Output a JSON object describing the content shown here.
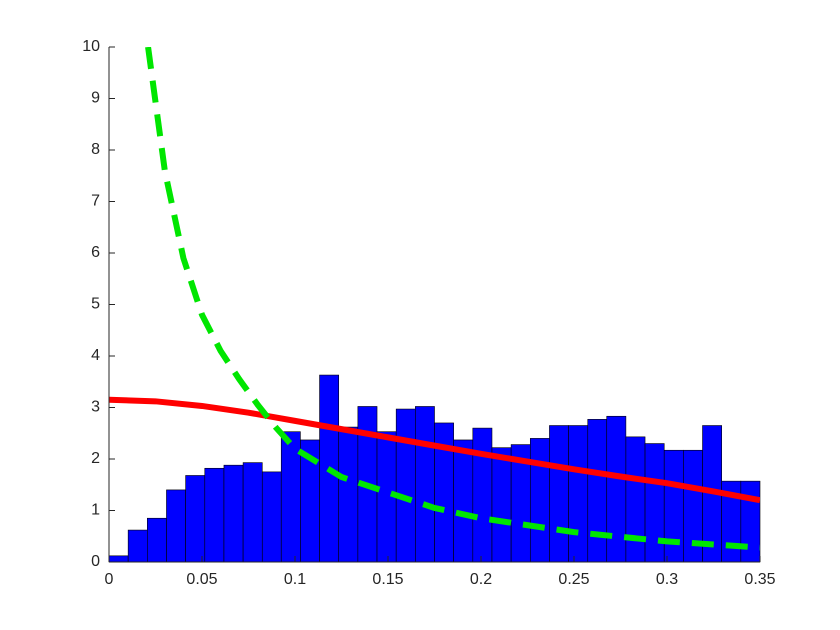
{
  "chart_data": {
    "type": "histogram",
    "bins": [
      0,
      0.0103,
      0.0206,
      0.0309,
      0.0412,
      0.0515,
      0.0618,
      0.0721,
      0.0824,
      0.0926,
      0.1029,
      0.1132,
      0.1235,
      0.1338,
      0.1441,
      0.1544,
      0.1647,
      0.175,
      0.1853,
      0.1956,
      0.2059,
      0.2162,
      0.2265,
      0.2368,
      0.2471,
      0.2574,
      0.2676,
      0.2779,
      0.2882,
      0.2985,
      0.3088,
      0.3191,
      0.3294,
      0.3397,
      0.35
    ],
    "values": [
      0.12,
      0.62,
      0.85,
      1.4,
      1.68,
      1.82,
      1.88,
      1.93,
      1.75,
      2.53,
      2.37,
      3.63,
      2.62,
      3.02,
      2.53,
      2.97,
      3.02,
      2.7,
      2.37,
      2.6,
      2.22,
      2.28,
      2.4,
      2.65,
      2.65,
      2.77,
      2.83,
      2.43,
      2.3,
      2.17,
      2.17,
      2.65,
      1.57,
      1.57
    ],
    "color": "#0000ff",
    "series": [
      {
        "type": "line",
        "color": "#ff0000",
        "dashed": false,
        "x": [
          0,
          0.025,
          0.05,
          0.075,
          0.1,
          0.125,
          0.15,
          0.175,
          0.2,
          0.225,
          0.25,
          0.275,
          0.3,
          0.325,
          0.35
        ],
        "values": [
          3.15,
          3.12,
          3.03,
          2.9,
          2.74,
          2.58,
          2.42,
          2.26,
          2.1,
          1.95,
          1.8,
          1.66,
          1.53,
          1.37,
          1.2
        ]
      },
      {
        "type": "line",
        "color": "#00e600",
        "dashed": true,
        "x": [
          0.021,
          0.03,
          0.04,
          0.05,
          0.06,
          0.07,
          0.08,
          0.09,
          0.1,
          0.125,
          0.15,
          0.175,
          0.2,
          0.25,
          0.3,
          0.35
        ],
        "values": [
          10,
          7.6,
          5.9,
          4.8,
          4.1,
          3.55,
          3.05,
          2.6,
          2.2,
          1.65,
          1.35,
          1.05,
          0.85,
          0.58,
          0.4,
          0.28
        ]
      }
    ],
    "xlim": [
      0,
      0.35
    ],
    "ylim": [
      0,
      10
    ],
    "xticks": [
      0,
      0.05,
      0.1,
      0.15,
      0.2,
      0.25,
      0.3,
      0.35
    ],
    "yticks": [
      0,
      1,
      2,
      3,
      4,
      5,
      6,
      7,
      8,
      9,
      10
    ]
  }
}
